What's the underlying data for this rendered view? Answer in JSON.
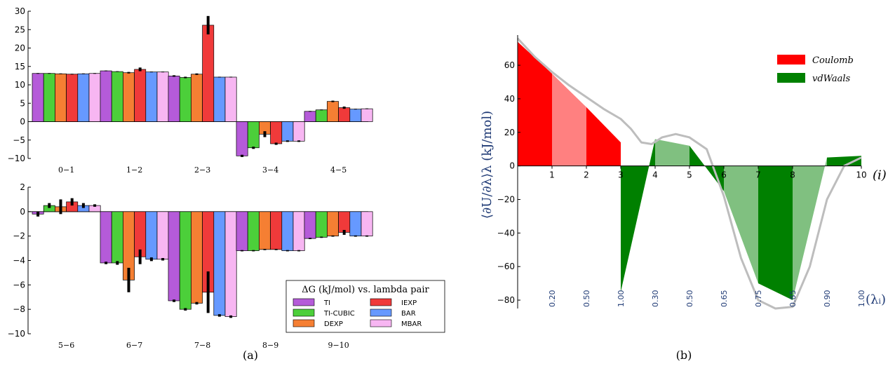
{
  "captions": {
    "a": "(a)",
    "b": "(b)"
  },
  "colors": {
    "TI": "#b55bd9",
    "TI-CUBIC": "#4ccf3a",
    "DEXP": "#f57f33",
    "IEXP": "#f03a3a",
    "BAR": "#6699ff",
    "MBAR": "#f7b6f2",
    "coulomb": "#ff0000",
    "coulomb_light": "#ff8080",
    "vdw": "#008000",
    "vdw_light": "#80c080",
    "curve": "#bdbdbd"
  },
  "chart_data": [
    {
      "type": "bar",
      "panel": "a-top",
      "categories": [
        "0−1",
        "1−2",
        "2−3",
        "3−4",
        "4−5"
      ],
      "ylim": [
        -10,
        30
      ],
      "yticks": [
        "30",
        "25",
        "20",
        "15",
        "10",
        "5",
        "0",
        "−5",
        "−10"
      ],
      "series": [
        {
          "name": "TI",
          "values": [
            13.1,
            13.8,
            12.4,
            -9.3,
            2.8
          ],
          "err": [
            0.1,
            0.1,
            0.2,
            0.3,
            0.1
          ]
        },
        {
          "name": "TI-CUBIC",
          "values": [
            13.1,
            13.6,
            12.0,
            -7.1,
            3.2
          ],
          "err": [
            0.1,
            0.1,
            0.2,
            0.3,
            0.1
          ]
        },
        {
          "name": "DEXP",
          "values": [
            13.0,
            13.3,
            12.9,
            -3.4,
            5.5
          ],
          "err": [
            0.1,
            0.2,
            0.2,
            0.8,
            0.2
          ]
        },
        {
          "name": "IEXP",
          "values": [
            12.9,
            14.2,
            26.2,
            -6.0,
            3.8
          ],
          "err": [
            0.1,
            0.5,
            2.5,
            0.3,
            0.3
          ]
        },
        {
          "name": "BAR",
          "values": [
            13.0,
            13.5,
            12.1,
            -5.3,
            3.4
          ],
          "err": [
            0.1,
            0.1,
            0.1,
            0.2,
            0.1
          ]
        },
        {
          "name": "MBAR",
          "values": [
            13.1,
            13.5,
            12.1,
            -5.3,
            3.5
          ],
          "err": [
            0.1,
            0.1,
            0.1,
            0.2,
            0.1
          ]
        }
      ]
    },
    {
      "type": "bar",
      "panel": "a-bottom",
      "categories": [
        "5−6",
        "6−7",
        "7−8",
        "8−9",
        "9−10"
      ],
      "ylim": [
        -10,
        2
      ],
      "yticks": [
        "2",
        "0",
        "−2",
        "−4",
        "−6",
        "−8",
        "−10"
      ],
      "series": [
        {
          "name": "TI",
          "values": [
            -0.2,
            -4.2,
            -7.3,
            -3.2,
            -2.2
          ],
          "err": [
            0.2,
            0.1,
            0.1,
            0.05,
            0.05
          ]
        },
        {
          "name": "TI-CUBIC",
          "values": [
            0.5,
            -4.2,
            -8.0,
            -3.2,
            -2.1
          ],
          "err": [
            0.2,
            0.15,
            0.1,
            0.05,
            0.05
          ]
        },
        {
          "name": "DEXP",
          "values": [
            0.4,
            -5.6,
            -7.5,
            -3.1,
            -2.0
          ],
          "err": [
            0.6,
            1.0,
            0.1,
            0.05,
            0.05
          ]
        },
        {
          "name": "IEXP",
          "values": [
            0.8,
            -3.7,
            -6.6,
            -3.1,
            -1.7
          ],
          "err": [
            0.3,
            0.6,
            1.7,
            0.05,
            0.2
          ]
        },
        {
          "name": "BAR",
          "values": [
            0.5,
            -3.9,
            -8.5,
            -3.2,
            -2.0
          ],
          "err": [
            0.2,
            0.15,
            0.1,
            0.05,
            0.05
          ]
        },
        {
          "name": "MBAR",
          "values": [
            0.5,
            -3.9,
            -8.6,
            -3.2,
            -2.0
          ],
          "err": [
            0.1,
            0.1,
            0.1,
            0.05,
            0.05
          ]
        }
      ],
      "legend": {
        "title": "ΔG (kJ/mol) vs. lambda pair",
        "position": "lower-right",
        "entries": [
          "TI",
          "IEXP",
          "TI-CUBIC",
          "BAR",
          "DEXP",
          "MBAR"
        ]
      }
    },
    {
      "type": "area",
      "panel": "b",
      "ylabel": "⟨∂U/∂λ⟩λ (kJ/mol)",
      "ylim": [
        -85,
        78
      ],
      "yticks": [
        60,
        40,
        20,
        0,
        -20,
        -40,
        -60,
        -80
      ],
      "xlim": [
        0,
        10
      ],
      "state_index_ticks": [
        "1",
        "2",
        "3",
        "4",
        "5",
        "6",
        "7",
        "8",
        "10"
      ],
      "state_index_label": "(i)",
      "lambda_tick_labels": [
        "0.20",
        "0.50",
        "1.00",
        "0.30",
        "0.50",
        "0.65",
        "0.75",
        "0.85",
        "0.90",
        "1.00"
      ],
      "lambda_label": "(λᵢ)",
      "legend": {
        "position": "top-right",
        "entries": [
          "Coulomb",
          "vdWaals"
        ]
      },
      "segments": [
        {
          "component": "Coulomb",
          "x": [
            0,
            1,
            2,
            3
          ],
          "y": [
            74,
            55,
            35,
            14
          ]
        },
        {
          "component": "vdWaals",
          "x": [
            3,
            4,
            5,
            6,
            7,
            8,
            9,
            10
          ],
          "y": [
            -75,
            16,
            12,
            -15,
            -70,
            -80,
            5,
            6
          ]
        }
      ],
      "curve": {
        "x": [
          0,
          0.5,
          1,
          1.5,
          2,
          2.5,
          3,
          3.3,
          3.6,
          3.9,
          4.2,
          4.6,
          5.0,
          5.5,
          6.0,
          6.5,
          7.0,
          7.5,
          8.0,
          8.5,
          9.0,
          9.5,
          10
        ],
        "y": [
          76,
          65,
          56,
          48,
          41,
          34,
          28,
          22,
          14,
          13,
          17,
          19,
          17,
          10,
          -18,
          -55,
          -80,
          -85,
          -84,
          -60,
          -20,
          0,
          5
        ]
      }
    }
  ]
}
